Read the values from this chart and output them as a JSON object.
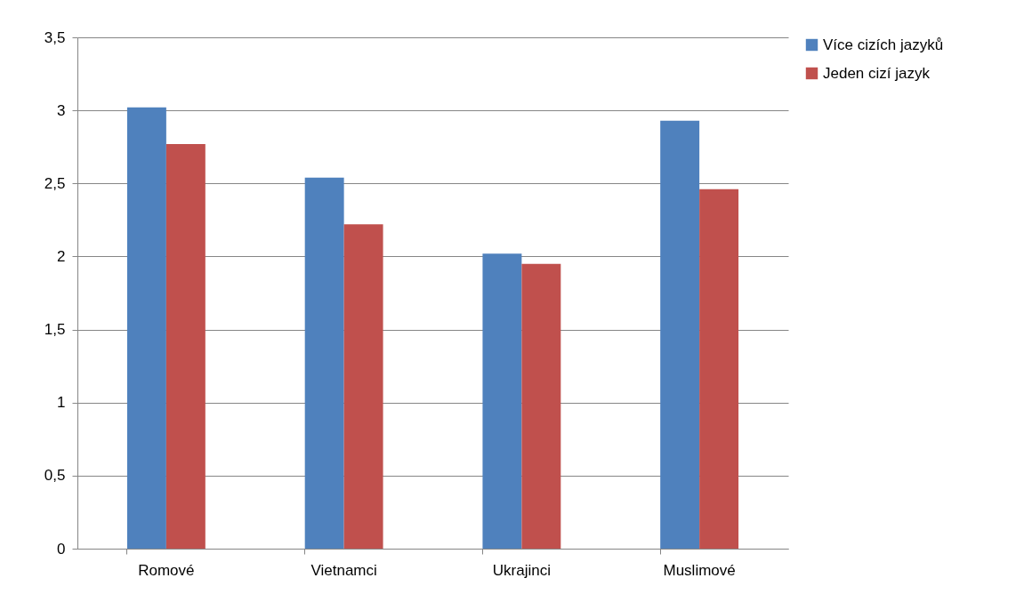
{
  "chart_data": {
    "type": "bar",
    "categories": [
      "Romové",
      "Vietnamci",
      "Ukrajinci",
      "Muslimové"
    ],
    "series": [
      {
        "name": "Více cizích jazyků",
        "color": "#4f81bd",
        "values": [
          3.02,
          2.54,
          2.02,
          2.93
        ]
      },
      {
        "name": "Jeden cizí jazyk",
        "color": "#c0504d",
        "values": [
          2.77,
          2.22,
          1.95,
          2.46
        ]
      }
    ],
    "ylim": [
      0,
      3.5
    ],
    "yticks": [
      0,
      {
        "value": 0.5,
        "label": "0,5"
      },
      1,
      {
        "value": 1.5,
        "label": "1,5"
      },
      2,
      {
        "value": 2.5,
        "label": "2,5"
      },
      3,
      {
        "value": 3.5,
        "label": "3,5"
      }
    ],
    "grid": "y",
    "legend": "right"
  }
}
